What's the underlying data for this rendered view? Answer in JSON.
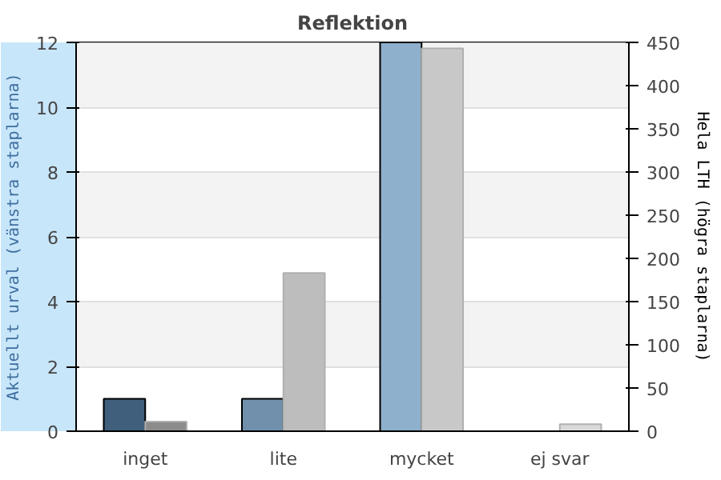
{
  "chart_data": {
    "type": "bar",
    "title": "Reflektion",
    "ylabel": "Aktuellt urval (vänstra staplarna)",
    "y2label": "Hela LTH (högra staplarna)",
    "categories": [
      "inget",
      "lite",
      "mycket",
      "ej svar"
    ],
    "series": [
      {
        "colors": [
          "#3f5f7c",
          "#7090ab",
          "#8fb0cc",
          "#8fb0cc"
        ],
        "values": [
          1,
          1,
          12,
          0
        ]
      },
      {
        "axis": "y2",
        "colors": [
          "#8c8c8c",
          "#bdbdbd",
          "#c8c8c8",
          "#d9d9d9"
        ],
        "values": [
          11,
          183,
          443,
          8
        ]
      }
    ],
    "ylim": [
      0,
      12
    ],
    "yticks": [
      0,
      2,
      4,
      6,
      8,
      10,
      12
    ],
    "y2lim": [
      0,
      450
    ],
    "y2ticks": [
      0,
      50,
      100,
      150,
      200,
      250,
      300,
      350,
      400,
      450
    ],
    "grid": "y"
  }
}
